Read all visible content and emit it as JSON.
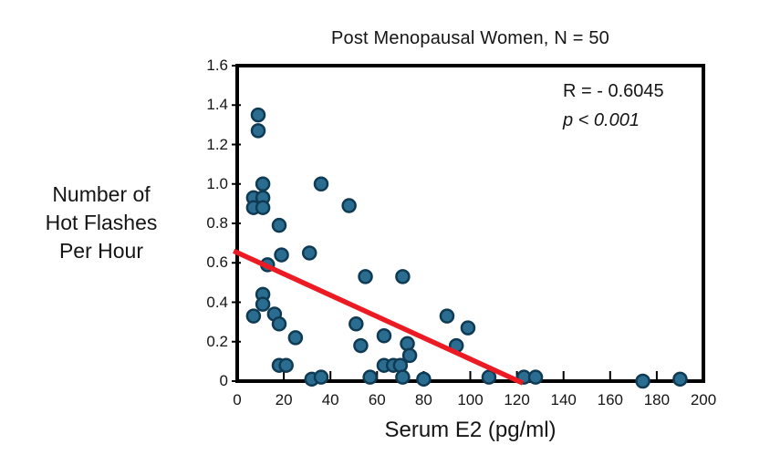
{
  "title": "Post Menopausal Women, N = 50",
  "chart_data": {
    "type": "scatter",
    "title": "Post Menopausal Women, N = 50",
    "xlabel": "Serum E2 (pg/ml)",
    "ylabel": "Number of Hot Flashes Per Hour",
    "ylabel_lines": [
      "Number of",
      "Hot Flashes",
      "Per Hour"
    ],
    "annotation": {
      "line1": "R = - 0.6045",
      "line2": "p < 0.001"
    },
    "xlim": [
      0,
      200
    ],
    "ylim": [
      0,
      1.6
    ],
    "x_ticks": [
      0,
      20,
      40,
      60,
      80,
      100,
      120,
      140,
      160,
      180,
      200
    ],
    "y_ticks": [
      0,
      0.2,
      0.4,
      0.6,
      0.8,
      1.0,
      1.2,
      1.4,
      1.6
    ],
    "y_tick_labels": [
      "0",
      "0.2",
      "0.4",
      "0.6",
      "0.8",
      "1.0",
      "1.2",
      "1.4",
      "1.6"
    ],
    "grid": false,
    "legend": "none",
    "points": [
      [
        9,
        1.35
      ],
      [
        9,
        1.27
      ],
      [
        11,
        1.0
      ],
      [
        7,
        0.93
      ],
      [
        11,
        0.93
      ],
      [
        7,
        0.88
      ],
      [
        11,
        0.88
      ],
      [
        18,
        0.79
      ],
      [
        36,
        1.0
      ],
      [
        48,
        0.89
      ],
      [
        13,
        0.59
      ],
      [
        19,
        0.64
      ],
      [
        31,
        0.65
      ],
      [
        55,
        0.53
      ],
      [
        71,
        0.53
      ],
      [
        11,
        0.44
      ],
      [
        11,
        0.39
      ],
      [
        7,
        0.33
      ],
      [
        16,
        0.34
      ],
      [
        18,
        0.29
      ],
      [
        25,
        0.22
      ],
      [
        51,
        0.29
      ],
      [
        53,
        0.18
      ],
      [
        63,
        0.23
      ],
      [
        73,
        0.19
      ],
      [
        74,
        0.13
      ],
      [
        63,
        0.08
      ],
      [
        67,
        0.08
      ],
      [
        70,
        0.08
      ],
      [
        18,
        0.08
      ],
      [
        21,
        0.08
      ],
      [
        90,
        0.33
      ],
      [
        99,
        0.27
      ],
      [
        94,
        0.18
      ],
      [
        32,
        0.01
      ],
      [
        36,
        0.02
      ],
      [
        57,
        0.02
      ],
      [
        71,
        0.02
      ],
      [
        80,
        0.01
      ],
      [
        108,
        0.02
      ],
      [
        123,
        0.02
      ],
      [
        128,
        0.02
      ],
      [
        174,
        0.0
      ],
      [
        190,
        0.01
      ]
    ],
    "trendline": {
      "x1": -1.5,
      "y1": 0.66,
      "x2": 122.5,
      "y2": -0.01
    },
    "colors": {
      "marker_fill": "#2B6D90",
      "marker_stroke": "#0F3A54",
      "trendline": "#EC1B23",
      "axis": "#000000"
    }
  }
}
